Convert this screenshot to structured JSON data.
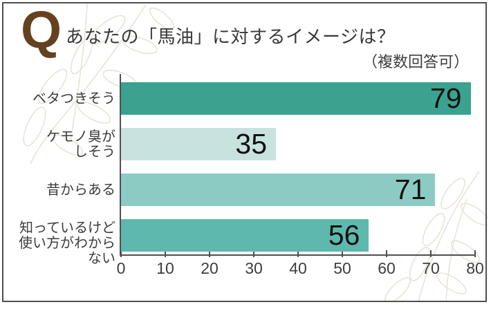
{
  "header": {
    "q_mark": "Q",
    "title": "あなたの「馬油」に対するイメージは？",
    "note": "（複数回答可）"
  },
  "chart_data": {
    "type": "bar",
    "orientation": "horizontal",
    "title": "あなたの「馬油」に対するイメージは？",
    "subtitle": "（複数回答可）",
    "categories": [
      "ベタつきそう",
      "ケモノ臭が\nしそう",
      "昔からある",
      "知っているけど\n使い方がわからない"
    ],
    "values": [
      79,
      35,
      71,
      56
    ],
    "bar_colors": [
      "#3aa28e",
      "#c8e3df",
      "#8bcbc3",
      "#5fb8ad"
    ],
    "value_labels": [
      "79",
      "35",
      "71",
      "56"
    ],
    "xlabel": "",
    "ylabel": "",
    "xlim": [
      0,
      80
    ],
    "xticks": [
      0,
      10,
      20,
      30,
      40,
      50,
      60,
      70,
      80
    ],
    "grid": false,
    "legend": false,
    "value_label_position": "inside-end"
  },
  "colors": {
    "q_mark": "#64421f",
    "frame_border": "#4f4f4f",
    "axis": "#4f4f4f",
    "title_text": "#383838",
    "label_text": "#3c3c3c",
    "value_text": "#111111",
    "leaf_line": "#e8e3d8",
    "background": "#ffffff"
  }
}
